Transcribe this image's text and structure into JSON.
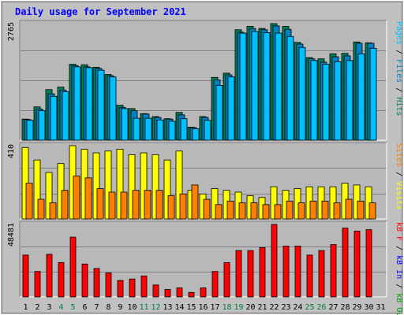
{
  "title": "Daily usage for September 2021",
  "colors": {
    "background": "#c0c0c0",
    "plot_bg": "#b8b8b8",
    "gridline": "#808080",
    "hits": "#00805a",
    "files": "#0080c0",
    "pages": "#00c0ff",
    "visits": "#ffff00",
    "sites": "#ff8000",
    "kb_f": "#ff0000",
    "kb_in": "#0000ff",
    "kb_out": "#00a000",
    "label_blue": "#0000ff",
    "weekend_green": "#008040"
  },
  "chart_data": {
    "type": "bar",
    "x": [
      "1",
      "2",
      "3",
      "4",
      "5",
      "6",
      "7",
      "8",
      "9",
      "10",
      "11",
      "12",
      "13",
      "14",
      "15",
      "16",
      "17",
      "18",
      "19",
      "20",
      "21",
      "22",
      "23",
      "24",
      "25",
      "26",
      "27",
      "28",
      "29",
      "30",
      "31"
    ],
    "weekend_days": [
      "4",
      "5",
      "11",
      "12",
      "18",
      "19",
      "25",
      "26"
    ],
    "panels": [
      {
        "id": "usage",
        "max_label": "2765",
        "ymax": 2765,
        "axis_labels": [
          {
            "text": "Pages",
            "color": "#00c0ff"
          },
          {
            "text": " / ",
            "color": "#000000"
          },
          {
            "text": "Files",
            "color": "#0080c0"
          },
          {
            "text": " / ",
            "color": "#000000"
          },
          {
            "text": "Hits",
            "color": "#00805a"
          }
        ],
        "series": [
          {
            "name": "Hits",
            "color": "#00805a",
            "values": [
              500,
              790,
              1200,
              1260,
              1800,
              1790,
              1730,
              1560,
              830,
              750,
              630,
              560,
              510,
              660,
              310,
              560,
              1490,
              1590,
              2620,
              2700,
              2650,
              2765,
              2700,
              2320,
              1960,
              1930,
              2050,
              2060,
              2330,
              2310,
              0
            ]
          },
          {
            "name": "Files",
            "color": "#0080c0",
            "values": [
              490,
              740,
              1100,
              1190,
              1770,
              1740,
              1700,
              1530,
              780,
              700,
              620,
              540,
              500,
              600,
              300,
              540,
              1430,
              1550,
              2560,
              2650,
              2620,
              2710,
              2630,
              2280,
              1930,
              1850,
              1980,
              2000,
              2300,
              2300,
              0
            ]
          },
          {
            "name": "Pages",
            "color": "#00c0ff",
            "values": [
              470,
              700,
              1040,
              1150,
              1740,
              1720,
              1660,
              1500,
              750,
              520,
              520,
              480,
              450,
              510,
              270,
              470,
              1300,
              1500,
              2540,
              2580,
              2550,
              2540,
              2460,
              2200,
              1890,
              1800,
              1860,
              1890,
              2050,
              2180,
              0
            ]
          }
        ]
      },
      {
        "id": "visits-sites",
        "max_label": "410",
        "ymax": 410,
        "axis_labels": [
          {
            "text": "Sites",
            "color": "#ff8000"
          },
          {
            "text": " / ",
            "color": "#000000"
          },
          {
            "text": "Visits",
            "color": "#ffff00"
          }
        ],
        "series": [
          {
            "name": "Visits",
            "color": "#ffff00",
            "values": [
              400,
              330,
              260,
              310,
              410,
              390,
              370,
              380,
              390,
              360,
              370,
              360,
              330,
              380,
              160,
              140,
              170,
              160,
              150,
              130,
              120,
              180,
              160,
              170,
              180,
              180,
              180,
              200,
              190,
              180,
              0
            ]
          },
          {
            "name": "Sites",
            "color": "#ff8000",
            "values": [
              200,
              110,
              90,
              160,
              240,
              230,
              170,
              150,
              150,
              160,
              160,
              160,
              130,
              140,
              190,
              110,
              80,
              100,
              90,
              90,
              80,
              80,
              100,
              90,
              100,
              100,
              90,
              110,
              100,
              90,
              0
            ]
          }
        ]
      },
      {
        "id": "kbytes",
        "max_label": "48481",
        "ymax": 48481,
        "axis_labels": [
          {
            "text": "kB F",
            "color": "#ff0000"
          },
          {
            "text": " / ",
            "color": "#000000"
          },
          {
            "text": "kB In",
            "color": "#0000ff"
          },
          {
            "text": " / ",
            "color": "#000000"
          },
          {
            "text": "kB Out",
            "color": "#00a000"
          }
        ],
        "series": [
          {
            "name": "kB F",
            "color": "#ff0000",
            "values": [
              28000,
              17000,
              28500,
              23000,
              40000,
              22000,
              19000,
              16000,
              11000,
              12000,
              14000,
              8000,
              5000,
              6000,
              3000,
              6000,
              17000,
              23000,
              31000,
              31000,
              33000,
              48481,
              34000,
              34000,
              28000,
              31000,
              35000,
              46000,
              44000,
              45000,
              0
            ]
          }
        ]
      }
    ]
  }
}
